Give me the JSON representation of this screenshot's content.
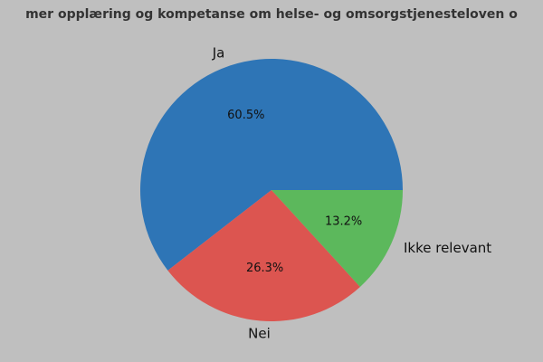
{
  "chart_data": {
    "type": "pie",
    "title": "mer opplæring og kompetanse om helse- og omsorgstjenesteloven o",
    "categories": [
      "Ja",
      "Nei",
      "Ikke relevant"
    ],
    "values": [
      60.5,
      26.3,
      13.2
    ],
    "value_labels": [
      "60.5%",
      "26.3%",
      "13.2%"
    ],
    "colors": [
      "#2e75b6",
      "#dc5550",
      "#5cb85c"
    ]
  }
}
